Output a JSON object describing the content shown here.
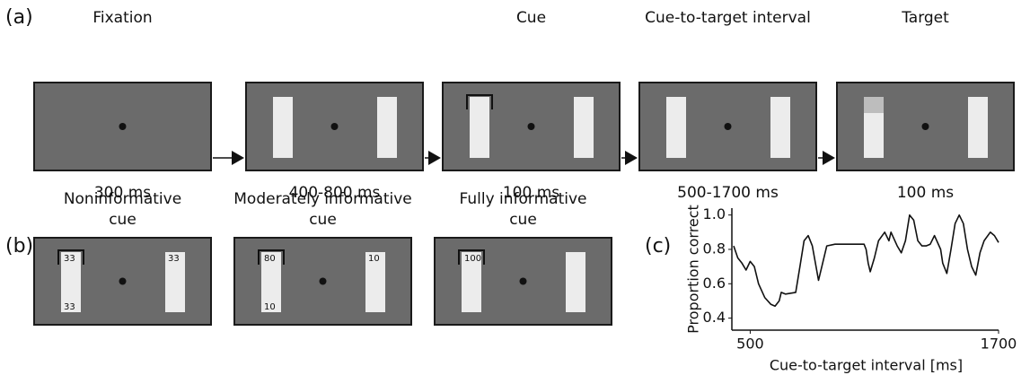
{
  "panel_a": {
    "label": "(a)",
    "frames": [
      {
        "title": "Fixation",
        "duration": "300 ms"
      },
      {
        "duration": "400-800 ms"
      },
      {
        "title": "Cue",
        "duration": "100 ms"
      },
      {
        "title": "Cue-to-target interval",
        "duration": "500-1700 ms"
      },
      {
        "title": "Target",
        "duration": "100 ms"
      }
    ]
  },
  "panel_b": {
    "label": "(b)",
    "frames": [
      {
        "title": [
          "Noninformative",
          "cue"
        ],
        "left_top": 33,
        "left_bottom": 33,
        "right_top": 33
      },
      {
        "title": [
          "Moderately informative",
          "cue"
        ],
        "left_top": 80,
        "left_bottom": 10,
        "right_top": 10
      },
      {
        "title": [
          "Fully informative",
          "cue"
        ],
        "left_top": 100
      }
    ]
  },
  "chart_data": {
    "type": "line",
    "label": "(c)",
    "xlabel": "Cue-to-target interval [ms]",
    "ylabel": "Proportion correct",
    "x": [
      420,
      440,
      460,
      480,
      500,
      520,
      540,
      570,
      600,
      620,
      640,
      650,
      670,
      720,
      740,
      760,
      780,
      800,
      830,
      850,
      870,
      910,
      980,
      1050,
      1060,
      1070,
      1080,
      1100,
      1120,
      1150,
      1170,
      1180,
      1210,
      1230,
      1250,
      1270,
      1290,
      1310,
      1330,
      1350,
      1370,
      1390,
      1420,
      1430,
      1450,
      1470,
      1490,
      1510,
      1530,
      1550,
      1570,
      1590,
      1610,
      1630,
      1660,
      1680,
      1700
    ],
    "series": [
      {
        "color": "#111111",
        "values": [
          0.82,
          0.75,
          0.72,
          0.68,
          0.73,
          0.7,
          0.6,
          0.52,
          0.48,
          0.47,
          0.5,
          0.55,
          0.54,
          0.55,
          0.7,
          0.85,
          0.88,
          0.82,
          0.62,
          0.72,
          0.82,
          0.83,
          0.83,
          0.83,
          0.8,
          0.72,
          0.67,
          0.75,
          0.85,
          0.9,
          0.85,
          0.9,
          0.82,
          0.78,
          0.85,
          1.0,
          0.97,
          0.85,
          0.82,
          0.82,
          0.83,
          0.88,
          0.8,
          0.72,
          0.66,
          0.8,
          0.95,
          1.0,
          0.95,
          0.8,
          0.7,
          0.65,
          0.78,
          0.85,
          0.9,
          0.88,
          0.84
        ]
      }
    ],
    "xlim": [
      420,
      1700
    ],
    "xticks": [
      500,
      1700
    ],
    "ylim": [
      0.33,
      1.04
    ],
    "yticks": [
      0.4,
      0.6,
      0.8,
      {
        "value": 1,
        "label": "1.0"
      }
    ]
  }
}
